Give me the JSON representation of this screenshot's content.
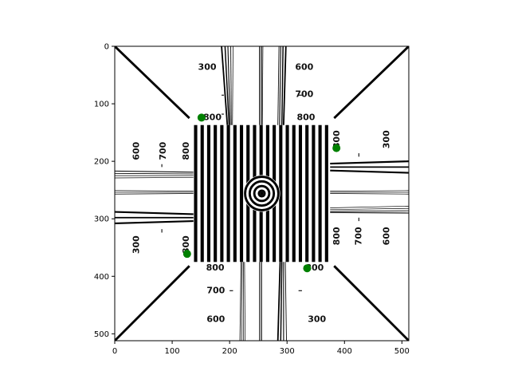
{
  "chart_data": {
    "type": "image",
    "title": "",
    "xlabel": "",
    "ylabel": "",
    "xlim": [
      0,
      512
    ],
    "ylim": [
      512,
      0
    ],
    "x_ticks": [
      "0",
      "100",
      "200",
      "300",
      "400",
      "500"
    ],
    "y_ticks": [
      "0",
      "100",
      "200",
      "300",
      "400",
      "500"
    ],
    "image_labels": {
      "top": [
        "300",
        "600",
        "700",
        "800",
        "800"
      ],
      "left": [
        "600",
        "700",
        "800",
        "300",
        "800"
      ],
      "right": [
        "800",
        "300",
        "800",
        "700",
        "600"
      ],
      "bottom": [
        "800",
        "800",
        "700",
        "600",
        "300"
      ]
    },
    "markers": {
      "color": "#008000",
      "points": [
        {
          "x": 151,
          "y": 124
        },
        {
          "x": 386,
          "y": 177
        },
        {
          "x": 126,
          "y": 361
        },
        {
          "x": 335,
          "y": 386
        }
      ]
    }
  }
}
